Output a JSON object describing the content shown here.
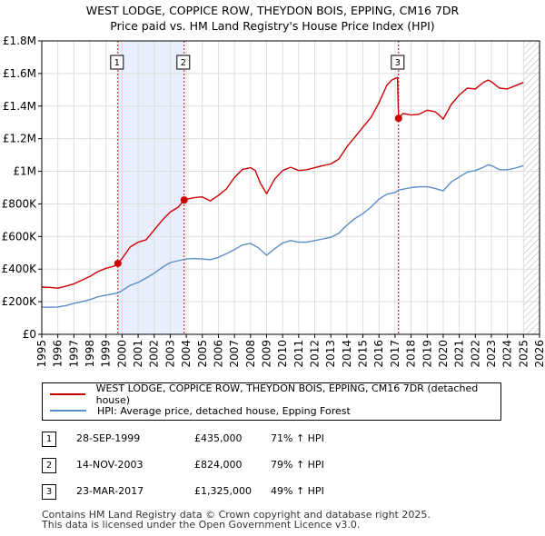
{
  "title_line1": "WEST LODGE, COPPICE ROW, THEYDON BOIS, EPPING, CM16 7DR",
  "title_line2": "Price paid vs. HM Land Registry's House Price Index (HPI)",
  "colors": {
    "property": "#cc0000",
    "hpi": "#5b8ec9",
    "shade": "#e8eefc",
    "hatch": "#bbbbbb",
    "grid": "#dddddd"
  },
  "chart_data": {
    "type": "line",
    "title": "Price paid vs. HM Land Registry's House Price Index (HPI)",
    "xlim": [
      1995,
      2026
    ],
    "ylim": [
      0,
      1800000
    ],
    "x_ticks": [
      1995,
      1996,
      1997,
      1998,
      1999,
      2000,
      2001,
      2002,
      2003,
      2004,
      2005,
      2006,
      2007,
      2008,
      2009,
      2010,
      2011,
      2012,
      2013,
      2014,
      2015,
      2016,
      2017,
      2018,
      2019,
      2020,
      2021,
      2022,
      2023,
      2024,
      2025,
      2026
    ],
    "y_ticks": [
      {
        "value": 0,
        "label": "£0"
      },
      {
        "value": 200000,
        "label": "£200K"
      },
      {
        "value": 400000,
        "label": "£400K"
      },
      {
        "value": 600000,
        "label": "£600K"
      },
      {
        "value": 800000,
        "label": "£800K"
      },
      {
        "value": 1000000,
        "label": "£1M"
      },
      {
        "value": 1200000,
        "label": "£1.2M"
      },
      {
        "value": 1400000,
        "label": "£1.4M"
      },
      {
        "value": 1600000,
        "label": "£1.6M"
      },
      {
        "value": 1800000,
        "label": "£1.8M"
      }
    ],
    "series": [
      {
        "name": "WEST LODGE, COPPICE ROW, THEYDON BOIS, EPPING, CM16 7DR (detached house)",
        "color": "#cc0000",
        "points": [
          [
            1995.0,
            290000
          ],
          [
            1995.5,
            288000
          ],
          [
            1996.0,
            283000
          ],
          [
            1996.5,
            295000
          ],
          [
            1997.0,
            310000
          ],
          [
            1997.5,
            332000
          ],
          [
            1998.0,
            355000
          ],
          [
            1998.5,
            385000
          ],
          [
            1999.0,
            405000
          ],
          [
            1999.5,
            418000
          ],
          [
            1999.74,
            435000
          ],
          [
            2000.0,
            465000
          ],
          [
            2000.5,
            535000
          ],
          [
            2001.0,
            565000
          ],
          [
            2001.5,
            580000
          ],
          [
            2002.0,
            640000
          ],
          [
            2002.5,
            700000
          ],
          [
            2003.0,
            750000
          ],
          [
            2003.5,
            780000
          ],
          [
            2003.87,
            824000
          ],
          [
            2004.0,
            828000
          ],
          [
            2004.5,
            838000
          ],
          [
            2005.0,
            843000
          ],
          [
            2005.5,
            818000
          ],
          [
            2006.0,
            852000
          ],
          [
            2006.5,
            892000
          ],
          [
            2007.0,
            962000
          ],
          [
            2007.5,
            1012000
          ],
          [
            2008.0,
            1022000
          ],
          [
            2008.3,
            1005000
          ],
          [
            2008.6,
            930000
          ],
          [
            2009.0,
            862000
          ],
          [
            2009.5,
            952000
          ],
          [
            2010.0,
            1005000
          ],
          [
            2010.5,
            1025000
          ],
          [
            2011.0,
            1005000
          ],
          [
            2011.5,
            1010000
          ],
          [
            2012.0,
            1022000
          ],
          [
            2012.5,
            1035000
          ],
          [
            2013.0,
            1045000
          ],
          [
            2013.5,
            1075000
          ],
          [
            2014.0,
            1150000
          ],
          [
            2014.5,
            1210000
          ],
          [
            2015.0,
            1270000
          ],
          [
            2015.5,
            1330000
          ],
          [
            2016.0,
            1420000
          ],
          [
            2016.5,
            1530000
          ],
          [
            2016.8,
            1560000
          ],
          [
            2017.0,
            1570000
          ],
          [
            2017.15,
            1575000
          ],
          [
            2017.22,
            1325000
          ],
          [
            2017.5,
            1355000
          ],
          [
            2018.0,
            1345000
          ],
          [
            2018.5,
            1350000
          ],
          [
            2019.0,
            1375000
          ],
          [
            2019.5,
            1365000
          ],
          [
            2019.8,
            1340000
          ],
          [
            2020.0,
            1320000
          ],
          [
            2020.5,
            1410000
          ],
          [
            2021.0,
            1468000
          ],
          [
            2021.5,
            1510000
          ],
          [
            2022.0,
            1505000
          ],
          [
            2022.5,
            1545000
          ],
          [
            2022.8,
            1560000
          ],
          [
            2023.0,
            1550000
          ],
          [
            2023.5,
            1510000
          ],
          [
            2024.0,
            1505000
          ],
          [
            2024.5,
            1525000
          ],
          [
            2025.0,
            1545000
          ]
        ]
      },
      {
        "name": "HPI: Average price, detached house, Epping Forest",
        "color": "#5b8ec9",
        "points": [
          [
            1995.0,
            168000
          ],
          [
            1995.5,
            166000
          ],
          [
            1996.0,
            168000
          ],
          [
            1996.5,
            176000
          ],
          [
            1997.0,
            190000
          ],
          [
            1997.5,
            200000
          ],
          [
            1998.0,
            213000
          ],
          [
            1998.5,
            230000
          ],
          [
            1999.0,
            240000
          ],
          [
            1999.74,
            254000
          ],
          [
            2000.0,
            268000
          ],
          [
            2000.5,
            300000
          ],
          [
            2001.0,
            318000
          ],
          [
            2001.5,
            345000
          ],
          [
            2002.0,
            375000
          ],
          [
            2002.5,
            410000
          ],
          [
            2003.0,
            440000
          ],
          [
            2003.87,
            460000
          ],
          [
            2004.0,
            462000
          ],
          [
            2004.5,
            465000
          ],
          [
            2005.0,
            462000
          ],
          [
            2005.5,
            458000
          ],
          [
            2006.0,
            472000
          ],
          [
            2006.5,
            495000
          ],
          [
            2007.0,
            520000
          ],
          [
            2007.5,
            548000
          ],
          [
            2008.0,
            558000
          ],
          [
            2008.5,
            530000
          ],
          [
            2009.0,
            485000
          ],
          [
            2009.5,
            525000
          ],
          [
            2010.0,
            560000
          ],
          [
            2010.5,
            575000
          ],
          [
            2011.0,
            565000
          ],
          [
            2011.5,
            565000
          ],
          [
            2012.0,
            575000
          ],
          [
            2012.5,
            585000
          ],
          [
            2013.0,
            595000
          ],
          [
            2013.5,
            620000
          ],
          [
            2014.0,
            670000
          ],
          [
            2014.5,
            710000
          ],
          [
            2015.0,
            740000
          ],
          [
            2015.5,
            780000
          ],
          [
            2016.0,
            830000
          ],
          [
            2016.5,
            860000
          ],
          [
            2017.0,
            870000
          ],
          [
            2017.22,
            885000
          ],
          [
            2017.5,
            890000
          ],
          [
            2018.0,
            900000
          ],
          [
            2018.5,
            905000
          ],
          [
            2019.0,
            905000
          ],
          [
            2019.5,
            895000
          ],
          [
            2020.0,
            880000
          ],
          [
            2020.5,
            935000
          ],
          [
            2021.0,
            965000
          ],
          [
            2021.5,
            995000
          ],
          [
            2022.0,
            1005000
          ],
          [
            2022.5,
            1025000
          ],
          [
            2022.8,
            1040000
          ],
          [
            2023.0,
            1035000
          ],
          [
            2023.5,
            1010000
          ],
          [
            2024.0,
            1010000
          ],
          [
            2024.5,
            1020000
          ],
          [
            2025.0,
            1035000
          ]
        ]
      }
    ],
    "sales": [
      {
        "label": "1",
        "x": 1999.74,
        "price": 435000
      },
      {
        "label": "2",
        "x": 2003.87,
        "price": 824000
      },
      {
        "label": "3",
        "x": 2017.22,
        "price": 1325000
      }
    ],
    "shaded_spans": [
      [
        1999.74,
        2003.87
      ]
    ],
    "hatched_span": [
      2025.0,
      2026
    ]
  },
  "legend": {
    "property_label": "WEST LODGE, COPPICE ROW, THEYDON BOIS, EPPING, CM16 7DR (detached house)",
    "hpi_label": "HPI: Average price, detached house, Epping Forest"
  },
  "sales_table": [
    {
      "num": "1",
      "date": "28-SEP-1999",
      "price": "£435,000",
      "hpi": "71% ↑ HPI"
    },
    {
      "num": "2",
      "date": "14-NOV-2003",
      "price": "£824,000",
      "hpi": "79% ↑ HPI"
    },
    {
      "num": "3",
      "date": "23-MAR-2017",
      "price": "£1,325,000",
      "hpi": "49% ↑ HPI"
    }
  ],
  "footer_line1": "Contains HM Land Registry data © Crown copyright and database right 2025.",
  "footer_line2": "This data is licensed under the Open Government Licence v3.0."
}
